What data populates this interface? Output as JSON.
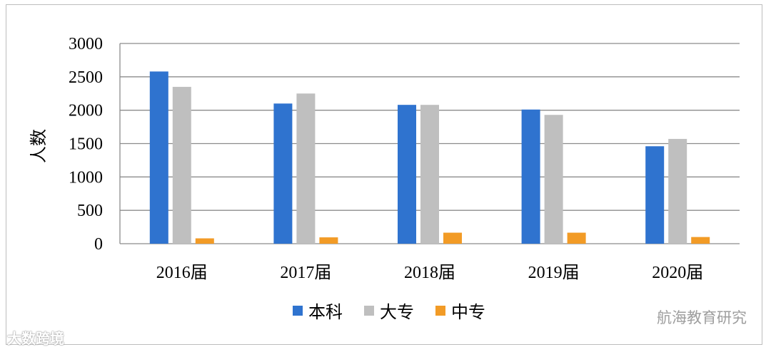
{
  "chart_data": {
    "type": "bar",
    "categories": [
      "2016届",
      "2017届",
      "2018届",
      "2019届",
      "2020届"
    ],
    "series": [
      {
        "name": "本科",
        "color": "#2f73cf",
        "values": [
          2580,
          2100,
          2080,
          2010,
          1460
        ]
      },
      {
        "name": "大专",
        "color": "#bfbfbf",
        "values": [
          2350,
          2250,
          2080,
          1930,
          1570
        ]
      },
      {
        "name": "中专",
        "color": "#f29b26",
        "values": [
          80,
          95,
          165,
          165,
          100
        ]
      }
    ],
    "ylabel": "人数",
    "ylim": [
      0,
      3000
    ],
    "yticks": [
      0,
      500,
      1000,
      1500,
      2000,
      2500,
      3000
    ],
    "grid": true,
    "legend": "bottom"
  },
  "watermarks": {
    "right": "航海教育研究",
    "left": "大数跨境"
  }
}
